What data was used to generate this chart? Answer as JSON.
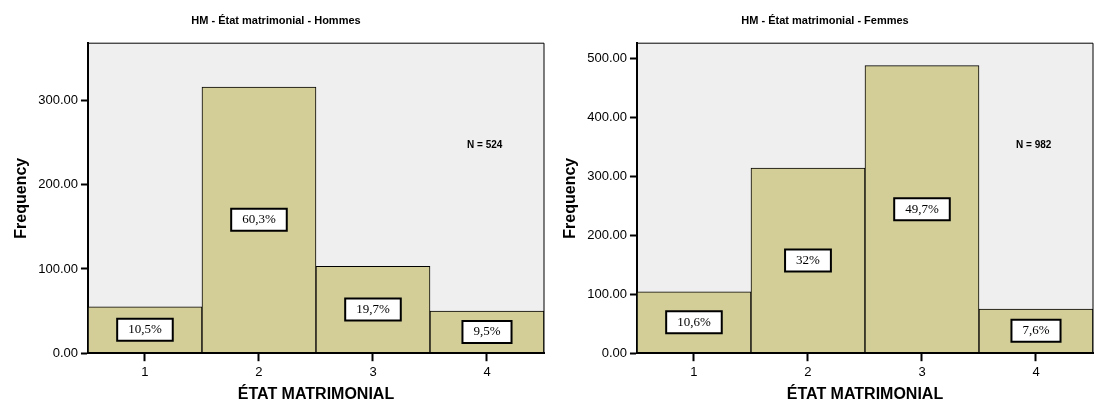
{
  "chart_data": [
    {
      "type": "bar",
      "title": "HM - État matrimonial - Hommes",
      "xlabel": "ÉTAT MATRIMONIAL",
      "ylabel": "Frequency",
      "categories": [
        "1",
        "2",
        "3",
        "4"
      ],
      "values": [
        55,
        316,
        103,
        50
      ],
      "color": "#d3ce98",
      "ylim": [
        0,
        368
      ],
      "yticks": [
        {
          "value": 0,
          "label": "0.00"
        },
        {
          "value": 100,
          "label": "100.00"
        },
        {
          "value": 200,
          "label": "200.00"
        },
        {
          "value": 300,
          "label": "300.00"
        }
      ],
      "grid": false,
      "legend": false,
      "annotations": [
        "N = 524",
        "10,5%",
        "60,3%",
        "19,7%",
        "9,5%"
      ]
    },
    {
      "type": "bar",
      "title": "HM - État matrimonial - Femmes",
      "xlabel": "ÉTAT MATRIMONIAL",
      "ylabel": "Frequency",
      "categories": [
        "1",
        "2",
        "3",
        "4"
      ],
      "values": [
        104,
        314,
        488,
        75
      ],
      "color": "#d3ce98",
      "ylim": [
        0,
        526
      ],
      "yticks": [
        {
          "value": 0,
          "label": "0.00"
        },
        {
          "value": 100,
          "label": "100.00"
        },
        {
          "value": 200,
          "label": "200.00"
        },
        {
          "value": 300,
          "label": "300.00"
        },
        {
          "value": 400,
          "label": "400.00"
        },
        {
          "value": 500,
          "label": "500.00"
        }
      ],
      "grid": false,
      "legend": false,
      "annotations": [
        "N = 982",
        "10,6%",
        "32%",
        "49,7%",
        "7,6%"
      ]
    }
  ]
}
